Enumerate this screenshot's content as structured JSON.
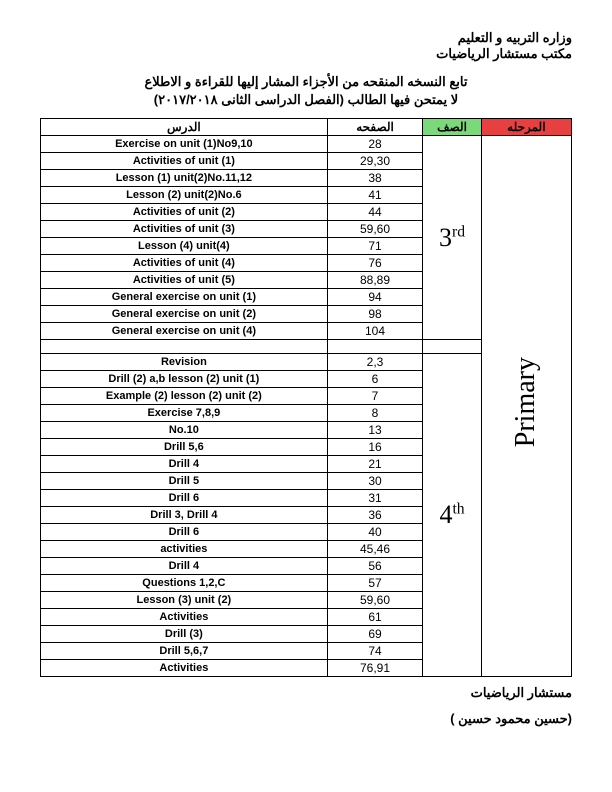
{
  "header": {
    "line1": "وزاره التربيه و التعليم",
    "line2": "مكتب مستشار الرياضيات"
  },
  "title": {
    "line1": "تابع النسخه المنقحه من الأجزاء المشار إليها للقراءة و الاطلاع",
    "line2": "لا يمتحن فيها الطالب (الفصل الدراسى الثانى ٢٠١٧/٢٠١٨)"
  },
  "table": {
    "headers": {
      "lesson": "الدرس",
      "page": "الصفحه",
      "grade": "الصف",
      "stage": "المرحله"
    },
    "stage_label": "Primary",
    "groups": [
      {
        "grade": "3",
        "ord": "rd",
        "rows": [
          {
            "l": "Exercise on unit (1)No9,10",
            "p": "28"
          },
          {
            "l": "Activities of unit (1)",
            "p": "29,30"
          },
          {
            "l": "Lesson (1) unit(2)No.11,12",
            "p": "38"
          },
          {
            "l": "Lesson (2) unit(2)No.6",
            "p": "41"
          },
          {
            "l": "Activities of unit (2)",
            "p": "44"
          },
          {
            "l": "Activities of unit (3)",
            "p": "59,60"
          },
          {
            "l": "Lesson (4) unit(4)",
            "p": "71"
          },
          {
            "l": "Activities of unit (4)",
            "p": "76"
          },
          {
            "l": "Activities of unit (5)",
            "p": "88,89"
          },
          {
            "l": "General exercise on unit (1)",
            "p": "94"
          },
          {
            "l": "General exercise on unit (2)",
            "p": "98"
          },
          {
            "l": "General exercise on unit (4)",
            "p": "104"
          }
        ]
      },
      {
        "grade": "4",
        "ord": "th",
        "rows": [
          {
            "l": "Revision",
            "p": "2,3"
          },
          {
            "l": "Drill (2) a,b lesson (2) unit (1)",
            "p": "6"
          },
          {
            "l": "Example (2) lesson (2)  unit (2)",
            "p": "7"
          },
          {
            "l": "Exercise 7,8,9",
            "p": "8"
          },
          {
            "l": "No.10",
            "p": "13"
          },
          {
            "l": "Drill 5,6",
            "p": "16"
          },
          {
            "l": "Drill 4",
            "p": "21"
          },
          {
            "l": "Drill 5",
            "p": "30"
          },
          {
            "l": "Drill 6",
            "p": "31"
          },
          {
            "l": "Drill 3, Drill 4",
            "p": "36"
          },
          {
            "l": "Drill 6",
            "p": "40"
          },
          {
            "l": "activities",
            "p": "45,46"
          },
          {
            "l": "Drill 4",
            "p": "56"
          },
          {
            "l": "Questions 1,2,C",
            "p": "57"
          },
          {
            "l": "Lesson (3) unit (2)",
            "p": "59,60"
          },
          {
            "l": "Activities",
            "p": "61"
          },
          {
            "l": "Drill (3)",
            "p": "69"
          },
          {
            "l": "Drill 5,6,7",
            "p": "74"
          },
          {
            "l": "Activities",
            "p": "76,91"
          }
        ]
      }
    ]
  },
  "footer": {
    "role": "مستشار الرياضيات",
    "name": "(حسين محمود حسين )"
  },
  "colors": {
    "grade_bg": "#7bd87b",
    "stage_bg": "#e84040",
    "text": "#000000",
    "border": "#000000",
    "background": "#ffffff"
  }
}
